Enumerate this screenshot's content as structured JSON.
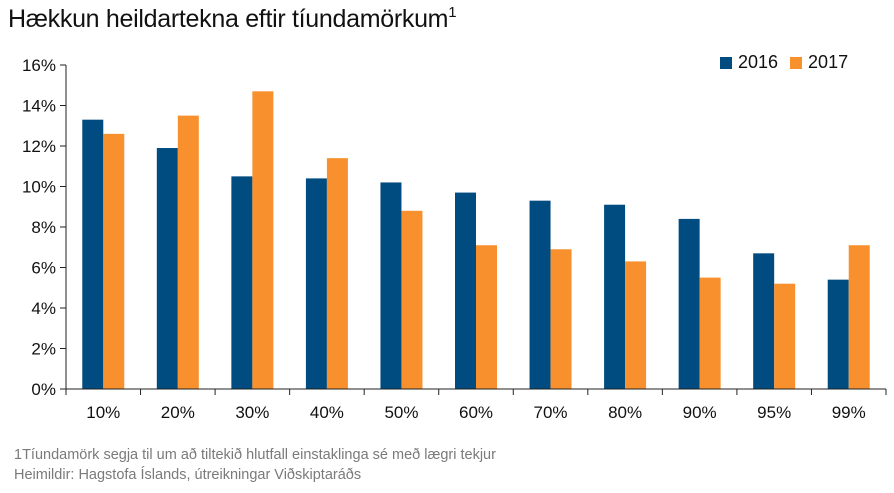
{
  "title": {
    "text": "Hækkun heildartekna eftir tíundamörkum",
    "superscript": "1"
  },
  "footnotes": {
    "note": "1Tíundamörk segja til um að tiltekið hlutfall einstaklinga sé með lægri tekjur",
    "source": "Heimildir: Hagstofa Íslands, útreikningar Viðskiptaráðs"
  },
  "colors": {
    "series_2016": "#004b7f",
    "series_2017": "#f7902d",
    "axis": "#222222"
  },
  "chart_data": {
    "type": "bar",
    "title": "Hækkun heildartekna eftir tíundamörkum",
    "xlabel": "",
    "ylabel": "",
    "categories": [
      "10%",
      "20%",
      "30%",
      "40%",
      "50%",
      "60%",
      "70%",
      "80%",
      "90%",
      "95%",
      "99%"
    ],
    "series": [
      {
        "name": "2016",
        "values": [
          13.3,
          11.9,
          10.5,
          10.4,
          10.2,
          9.7,
          9.3,
          9.1,
          8.4,
          6.7,
          5.4
        ]
      },
      {
        "name": "2017",
        "values": [
          12.6,
          13.5,
          14.7,
          11.4,
          8.8,
          7.1,
          6.9,
          6.3,
          5.5,
          5.2,
          7.1
        ]
      }
    ],
    "ylim": [
      0,
      16
    ],
    "yticks": [
      "0%",
      "2%",
      "4%",
      "6%",
      "8%",
      "10%",
      "12%",
      "14%",
      "16%"
    ],
    "legend_position": "top-right",
    "grid": false
  }
}
